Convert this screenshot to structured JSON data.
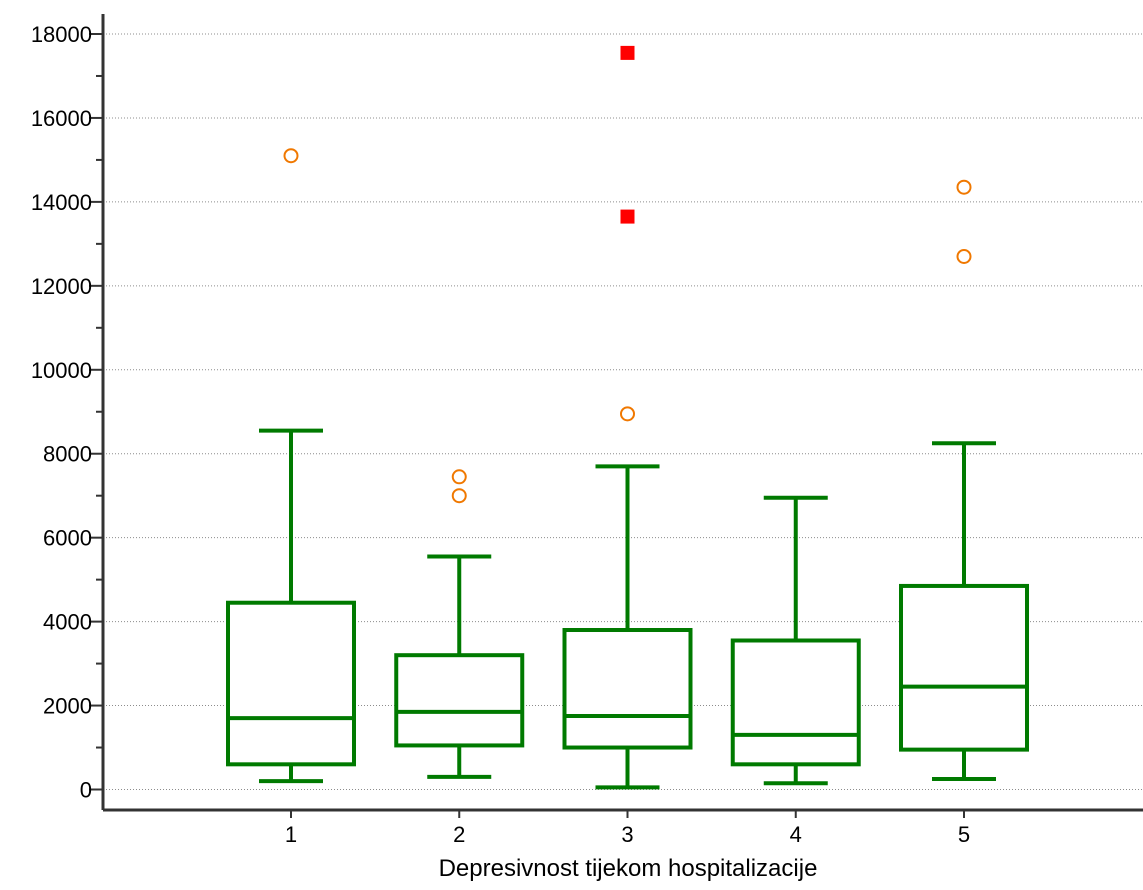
{
  "chart_data": {
    "type": "boxplot",
    "title": "",
    "xlabel": "Depresivnost tijekom hospitalizacije",
    "ylabel": "",
    "ylim": [
      -500,
      18500
    ],
    "yticks": [
      0,
      2000,
      4000,
      6000,
      8000,
      10000,
      12000,
      14000,
      16000,
      18000
    ],
    "grid": "horizontal-dotted",
    "categories": [
      "1",
      "2",
      "3",
      "4",
      "5"
    ],
    "boxes": [
      {
        "category": "1",
        "whisker_low": 200,
        "q1": 600,
        "median": 1700,
        "q3": 4450,
        "whisker_high": 8550
      },
      {
        "category": "2",
        "whisker_low": 300,
        "q1": 1050,
        "median": 1850,
        "q3": 3200,
        "whisker_high": 5550
      },
      {
        "category": "3",
        "whisker_low": 50,
        "q1": 1000,
        "median": 1750,
        "q3": 3800,
        "whisker_high": 7700
      },
      {
        "category": "4",
        "whisker_low": 150,
        "q1": 600,
        "median": 1300,
        "q3": 3550,
        "whisker_high": 6950
      },
      {
        "category": "5",
        "whisker_low": 250,
        "q1": 950,
        "median": 2450,
        "q3": 4850,
        "whisker_high": 8250
      }
    ],
    "outliers": [
      {
        "category": "1",
        "value": 15100,
        "kind": "outside"
      },
      {
        "category": "2",
        "value": 7450,
        "kind": "outside"
      },
      {
        "category": "2",
        "value": 7000,
        "kind": "outside"
      },
      {
        "category": "3",
        "value": 8950,
        "kind": "outside"
      },
      {
        "category": "3",
        "value": 17550,
        "kind": "far-out"
      },
      {
        "category": "3",
        "value": 13650,
        "kind": "far-out"
      },
      {
        "category": "5",
        "value": 14350,
        "kind": "outside"
      },
      {
        "category": "5",
        "value": 12700,
        "kind": "outside"
      }
    ],
    "colors": {
      "box": "#007a00",
      "outside_marker": "#f07800",
      "far_out_marker": "#ff0000",
      "axis": "#333333",
      "grid": "#8c8c8c"
    }
  }
}
